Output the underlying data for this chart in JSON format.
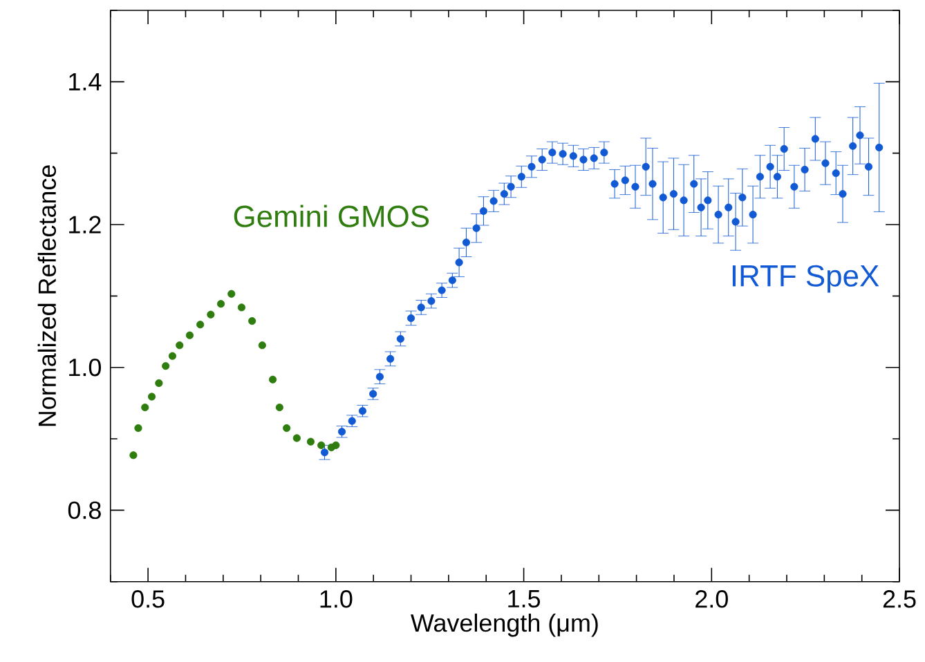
{
  "chart_data": {
    "type": "scatter",
    "xlabel": "Wavelength (μm)",
    "ylabel": "Normalized Reflectance",
    "xlim": [
      0.4,
      2.5
    ],
    "ylim": [
      0.7,
      1.5
    ],
    "xticks": [
      {
        "value": 0.4,
        "label": null
      },
      0.5,
      {
        "value": 0.6,
        "label": null
      },
      {
        "value": 0.7,
        "label": null
      },
      {
        "value": 0.8,
        "label": null
      },
      {
        "value": 0.9,
        "label": null
      },
      {
        "value": 1.0,
        "label": "1.0"
      },
      {
        "value": 1.1,
        "label": null
      },
      {
        "value": 1.2,
        "label": null
      },
      {
        "value": 1.3,
        "label": null
      },
      {
        "value": 1.4,
        "label": null
      },
      1.5,
      {
        "value": 1.6,
        "label": null
      },
      {
        "value": 1.7,
        "label": null
      },
      {
        "value": 1.8,
        "label": null
      },
      {
        "value": 1.9,
        "label": null
      },
      {
        "value": 2.0,
        "label": "2.0"
      },
      {
        "value": 2.1,
        "label": null
      },
      {
        "value": 2.2,
        "label": null
      },
      {
        "value": 2.3,
        "label": null
      },
      {
        "value": 2.4,
        "label": null
      },
      2.5
    ],
    "yticks": [
      {
        "value": 0.7,
        "label": null
      },
      0.8,
      {
        "value": 0.9,
        "label": null
      },
      {
        "value": 1.0,
        "label": "1.0"
      },
      {
        "value": 1.1,
        "label": null
      },
      1.2,
      {
        "value": 1.3,
        "label": null
      },
      1.4,
      {
        "value": 1.5,
        "label": null
      }
    ],
    "marker": "circle",
    "legend": false,
    "grid": false,
    "series": [
      {
        "name": "Gemini GMOS",
        "color": "#2e7d0e",
        "x": [
          0.461,
          0.474,
          0.492,
          0.51,
          0.529,
          0.547,
          0.565,
          0.584,
          0.611,
          0.639,
          0.667,
          0.694,
          0.722,
          0.749,
          0.777,
          0.804,
          0.832,
          0.85,
          0.869,
          0.896,
          0.933,
          0.961,
          0.988,
          1.0
        ],
        "values": [
          0.877,
          0.915,
          0.944,
          0.959,
          0.978,
          1.002,
          1.016,
          1.031,
          1.045,
          1.06,
          1.074,
          1.089,
          1.103,
          1.084,
          1.065,
          1.031,
          0.983,
          0.944,
          0.915,
          0.901,
          0.896,
          0.891,
          0.888,
          0.891
        ]
      },
      {
        "name": "IRTF SpeX",
        "color": "#1259d4",
        "x": [
          0.97,
          1.016,
          1.043,
          1.071,
          1.099,
          1.117,
          1.145,
          1.172,
          1.2,
          1.227,
          1.254,
          1.282,
          1.31,
          1.328,
          1.347,
          1.374,
          1.393,
          1.42,
          1.448,
          1.466,
          1.494,
          1.521,
          1.549,
          1.576,
          1.604,
          1.632,
          1.659,
          1.687,
          1.714,
          1.742,
          1.77,
          1.797,
          1.825,
          1.843,
          1.871,
          1.899,
          1.926,
          1.953,
          1.972,
          1.99,
          2.018,
          2.045,
          2.064,
          2.082,
          2.11,
          2.129,
          2.156,
          2.175,
          2.193,
          2.22,
          2.248,
          2.276,
          2.303,
          2.331,
          2.349,
          2.376,
          2.395,
          2.418,
          2.446
        ],
        "values": [
          0.881,
          0.91,
          0.925,
          0.939,
          0.963,
          0.987,
          1.012,
          1.04,
          1.069,
          1.084,
          1.093,
          1.108,
          1.122,
          1.147,
          1.175,
          1.195,
          1.219,
          1.233,
          1.243,
          1.253,
          1.267,
          1.281,
          1.291,
          1.301,
          1.299,
          1.296,
          1.291,
          1.293,
          1.301,
          1.257,
          1.262,
          1.253,
          1.281,
          1.257,
          1.238,
          1.243,
          1.234,
          1.257,
          1.224,
          1.234,
          1.214,
          1.224,
          1.204,
          1.238,
          1.214,
          1.267,
          1.281,
          1.267,
          1.306,
          1.253,
          1.277,
          1.32,
          1.286,
          1.272,
          1.243,
          1.31,
          1.325,
          1.281,
          1.308
        ],
        "errors": [
          0.01,
          0.008,
          0.008,
          0.008,
          0.008,
          0.01,
          0.01,
          0.01,
          0.01,
          0.01,
          0.01,
          0.01,
          0.01,
          0.02,
          0.02,
          0.02,
          0.02,
          0.015,
          0.015,
          0.015,
          0.015,
          0.015,
          0.015,
          0.015,
          0.015,
          0.015,
          0.015,
          0.015,
          0.015,
          0.02,
          0.02,
          0.03,
          0.04,
          0.05,
          0.05,
          0.05,
          0.05,
          0.04,
          0.04,
          0.04,
          0.04,
          0.04,
          0.04,
          0.04,
          0.04,
          0.03,
          0.03,
          0.03,
          0.03,
          0.03,
          0.03,
          0.03,
          0.03,
          0.03,
          0.04,
          0.04,
          0.04,
          0.04,
          0.09
        ]
      }
    ]
  }
}
